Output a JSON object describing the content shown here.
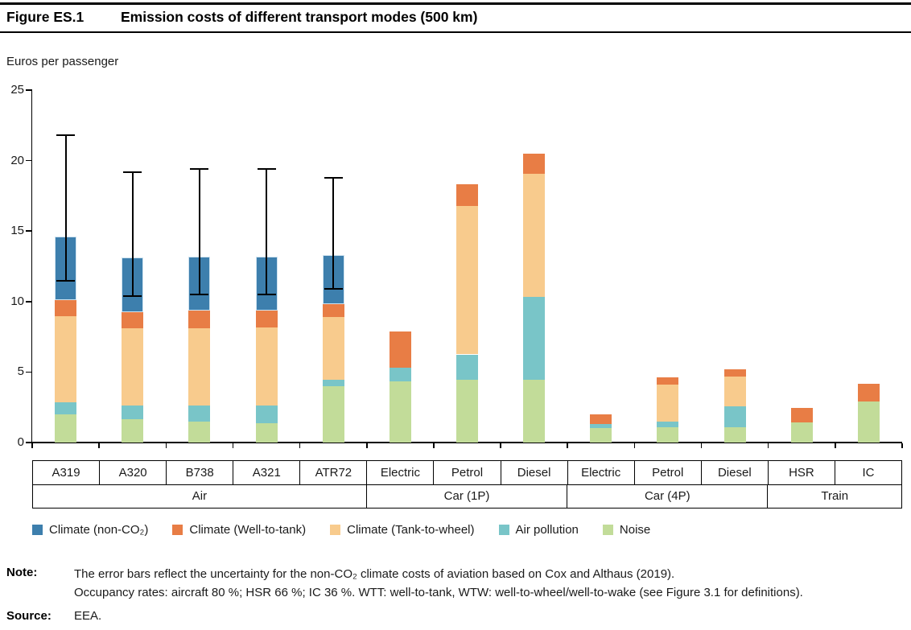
{
  "header": {
    "figure_label": "Figure ES.1",
    "title": "Emission costs of different transport modes (500 km)"
  },
  "chart_data": {
    "type": "bar",
    "stacked": true,
    "unit_label": "Euros per passenger",
    "ylim": [
      0,
      25
    ],
    "yticks": [
      0,
      5,
      10,
      15,
      20,
      25
    ],
    "grid": false,
    "legend_position": "bottom",
    "categories": [
      "A319",
      "A320",
      "B738",
      "A321",
      "ATR72",
      "Electric",
      "Petrol",
      "Diesel",
      "Electric",
      "Petrol",
      "Diesel",
      "HSR",
      "IC"
    ],
    "groups": [
      {
        "label": "Air",
        "span": 5
      },
      {
        "label": "Car (1P)",
        "span": 3
      },
      {
        "label": "Car (4P)",
        "span": 3
      },
      {
        "label": "Train",
        "span": 2
      }
    ],
    "series": [
      {
        "name": "Noise",
        "color": "#c2dc99",
        "values": [
          2.0,
          1.65,
          1.5,
          1.35,
          4.0,
          4.35,
          4.45,
          4.45,
          1.05,
          1.1,
          1.1,
          1.45,
          2.9
        ]
      },
      {
        "name": "Air pollution",
        "color": "#79c5c8",
        "values": [
          0.85,
          1.0,
          1.1,
          1.3,
          0.45,
          0.95,
          1.8,
          5.9,
          0.25,
          0.4,
          1.45,
          0,
          0
        ]
      },
      {
        "name": "Climate (Tank-to-wheel)",
        "color": "#f8cb8d",
        "values": [
          6.1,
          5.45,
          5.5,
          5.5,
          4.45,
          0,
          10.55,
          8.7,
          0,
          2.6,
          2.15,
          0,
          0
        ]
      },
      {
        "name": "Climate (Well-to-tank)",
        "color": "#e87d45",
        "values": [
          1.15,
          1.15,
          1.25,
          1.2,
          0.9,
          2.6,
          1.5,
          1.45,
          0.7,
          0.5,
          0.5,
          1.0,
          1.25
        ]
      },
      {
        "name": "Climate (non-CO₂)",
        "color": "#3d7fad",
        "values": [
          4.5,
          3.9,
          3.85,
          3.85,
          3.5,
          0,
          0,
          0,
          0,
          0,
          0,
          0,
          0
        ]
      }
    ],
    "legend_order": [
      4,
      3,
      2,
      1,
      0
    ],
    "error_bars": [
      [
        11.5,
        21.8
      ],
      [
        10.4,
        19.2
      ],
      [
        10.5,
        19.4
      ],
      [
        10.5,
        19.4
      ],
      [
        10.9,
        18.8
      ],
      null,
      null,
      null,
      null,
      null,
      null,
      null,
      null
    ],
    "error_bar_color": "#000000",
    "bar_totals": [
      14.6,
      13.15,
      13.2,
      13.2,
      13.3,
      7.9,
      18.3,
      20.5,
      2.0,
      4.6,
      5.2,
      2.45,
      4.15
    ]
  },
  "note": {
    "label": "Note:",
    "lines": [
      "The error bars reflect the uncertainty for the non-CO₂ climate costs of aviation based on Cox and Althaus (2019).",
      "Occupancy rates: aircraft 80 %; HSR 66 %; IC 36 %. WTT: well-to-tank, WTW: well-to-wheel/well-to-wake (see Figure 3.1 for definitions)."
    ]
  },
  "source": {
    "label": "Source:",
    "text": "EEA."
  }
}
